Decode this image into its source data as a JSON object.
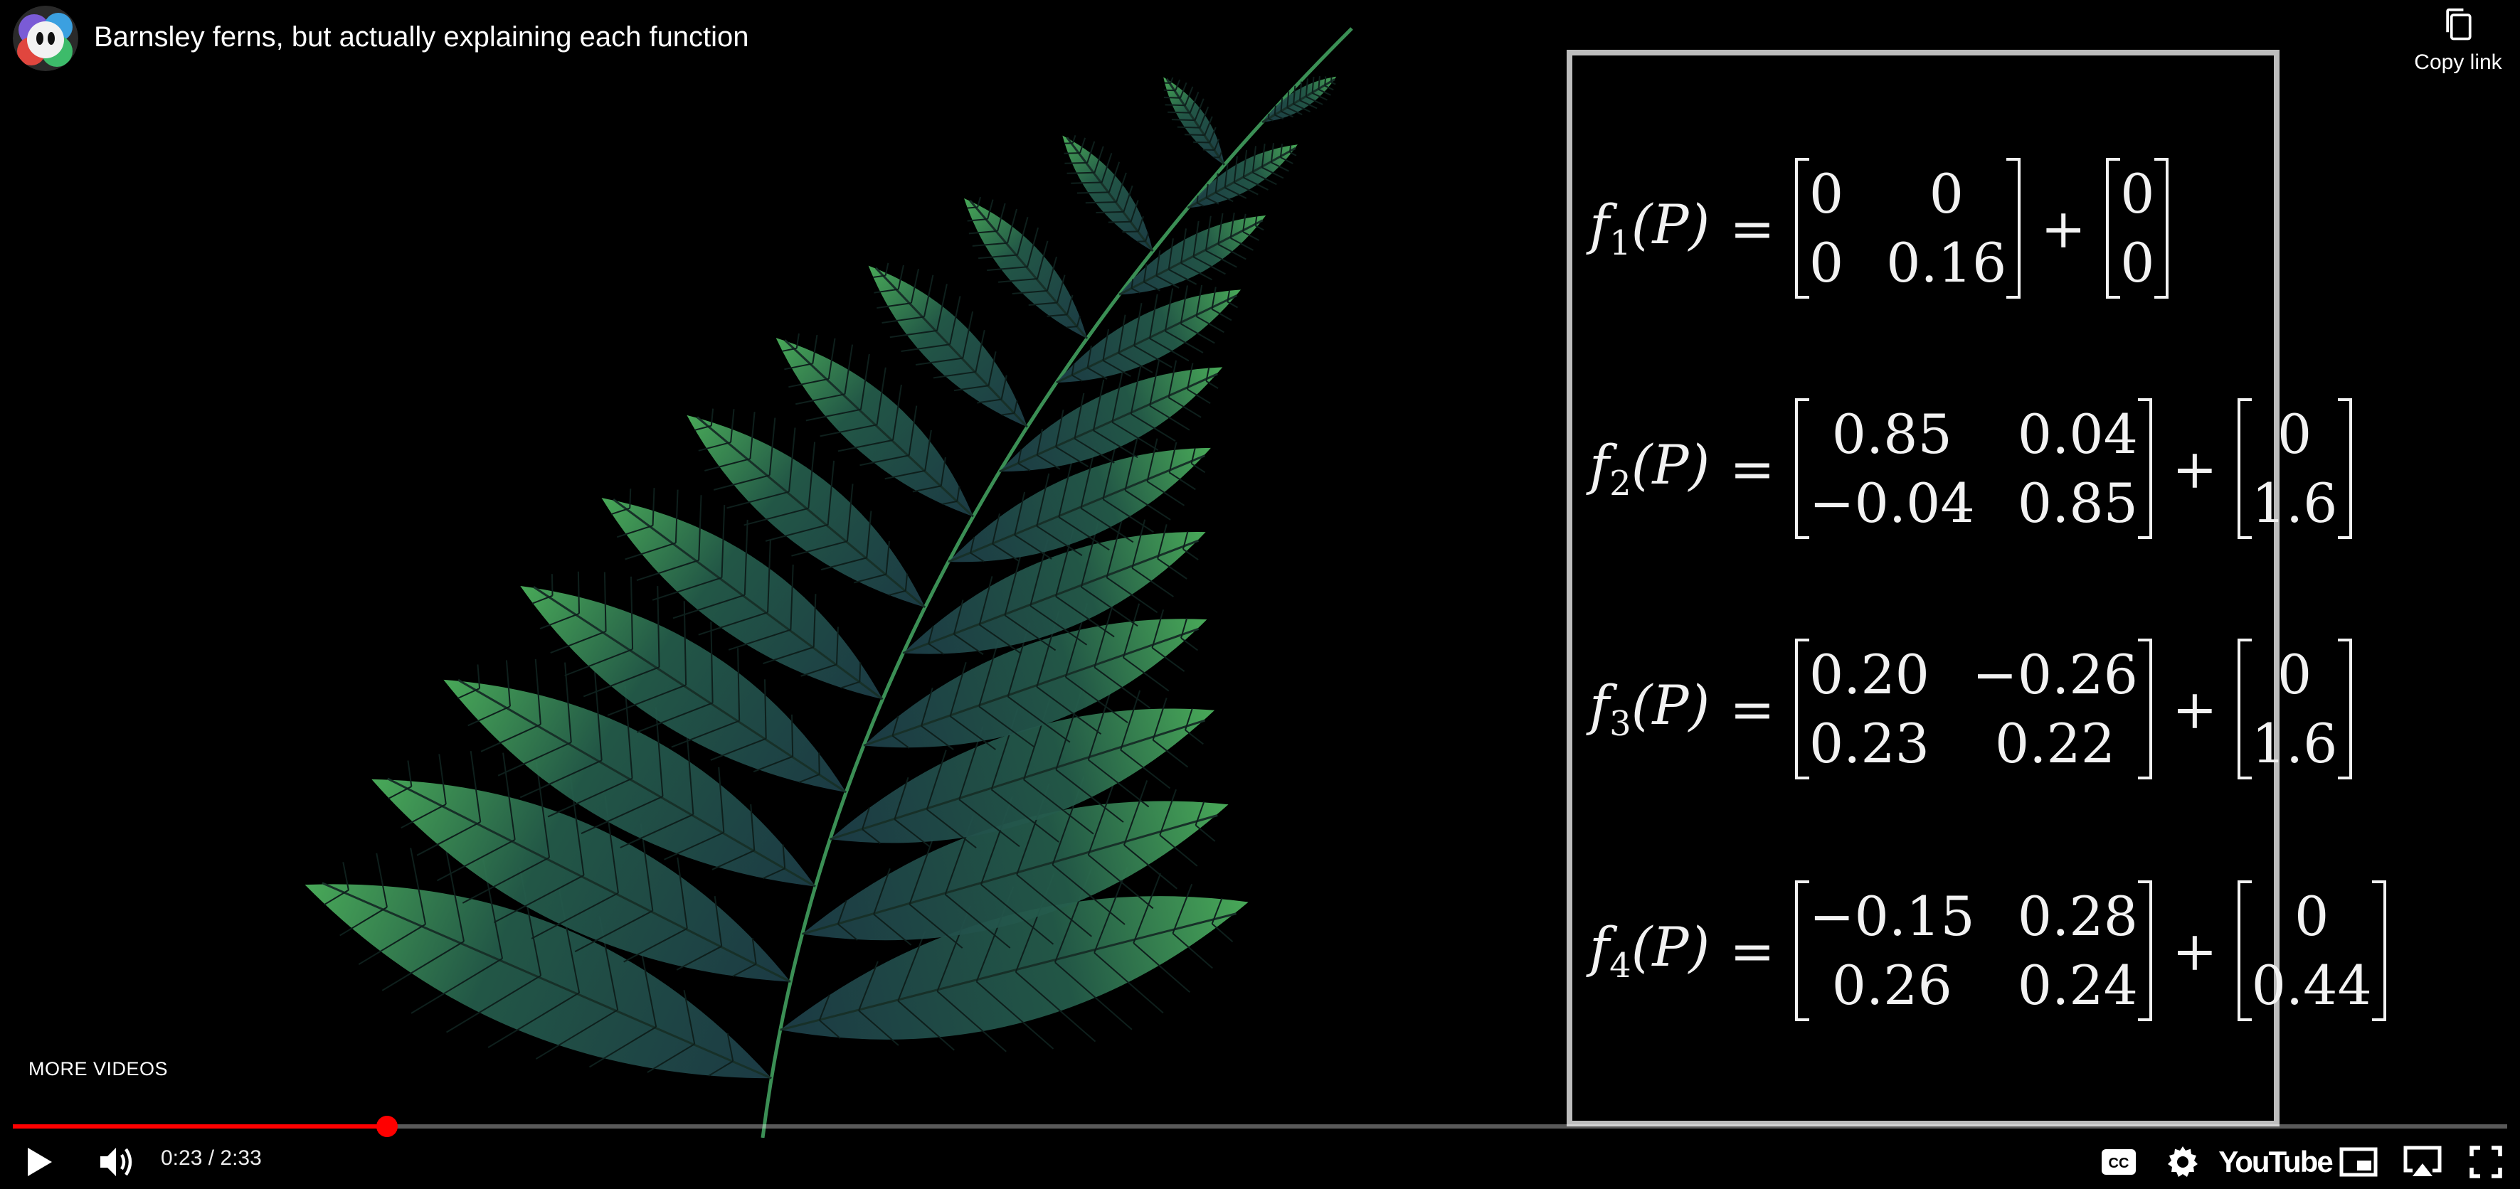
{
  "header": {
    "title": "Barnsley ferns, but actually explaining each function",
    "copy_link_label": "Copy link",
    "avatar_icon": "channel-avatar-icon"
  },
  "equations": [
    {
      "name": "f",
      "sub": "1",
      "arg": "(P)",
      "eq": "=",
      "m": [
        "0",
        "0",
        "0",
        "0.16"
      ],
      "plus": "+",
      "v": [
        "0",
        "0"
      ]
    },
    {
      "name": "f",
      "sub": "2",
      "arg": "(P)",
      "eq": "=",
      "m": [
        "0.85",
        "0.04",
        "−0.04",
        "0.85"
      ],
      "plus": "+",
      "v": [
        "0",
        "1.6"
      ]
    },
    {
      "name": "f",
      "sub": "3",
      "arg": "(P)",
      "eq": "=",
      "m": [
        "0.20",
        "−0.26",
        "0.23",
        "0.22"
      ],
      "plus": "+",
      "v": [
        "0",
        "1.6"
      ]
    },
    {
      "name": "f",
      "sub": "4",
      "arg": "(P)",
      "eq": "=",
      "m": [
        "−0.15",
        "0.28",
        "0.26",
        "0.24"
      ],
      "plus": "+",
      "v": [
        "0",
        "0.44"
      ]
    }
  ],
  "player": {
    "more_videos_label": "MORE VIDEOS",
    "current_time": "0:23",
    "time_separator": " / ",
    "duration": "2:33",
    "progress_fraction": 0.15,
    "accent_color": "#ff0000",
    "youtube_label": "YouTube"
  },
  "icons": [
    "play-icon",
    "volume-icon",
    "captions-icon",
    "settings-icon",
    "miniplayer-icon",
    "airplay-icon",
    "fullscreen-icon",
    "copy-icon"
  ]
}
